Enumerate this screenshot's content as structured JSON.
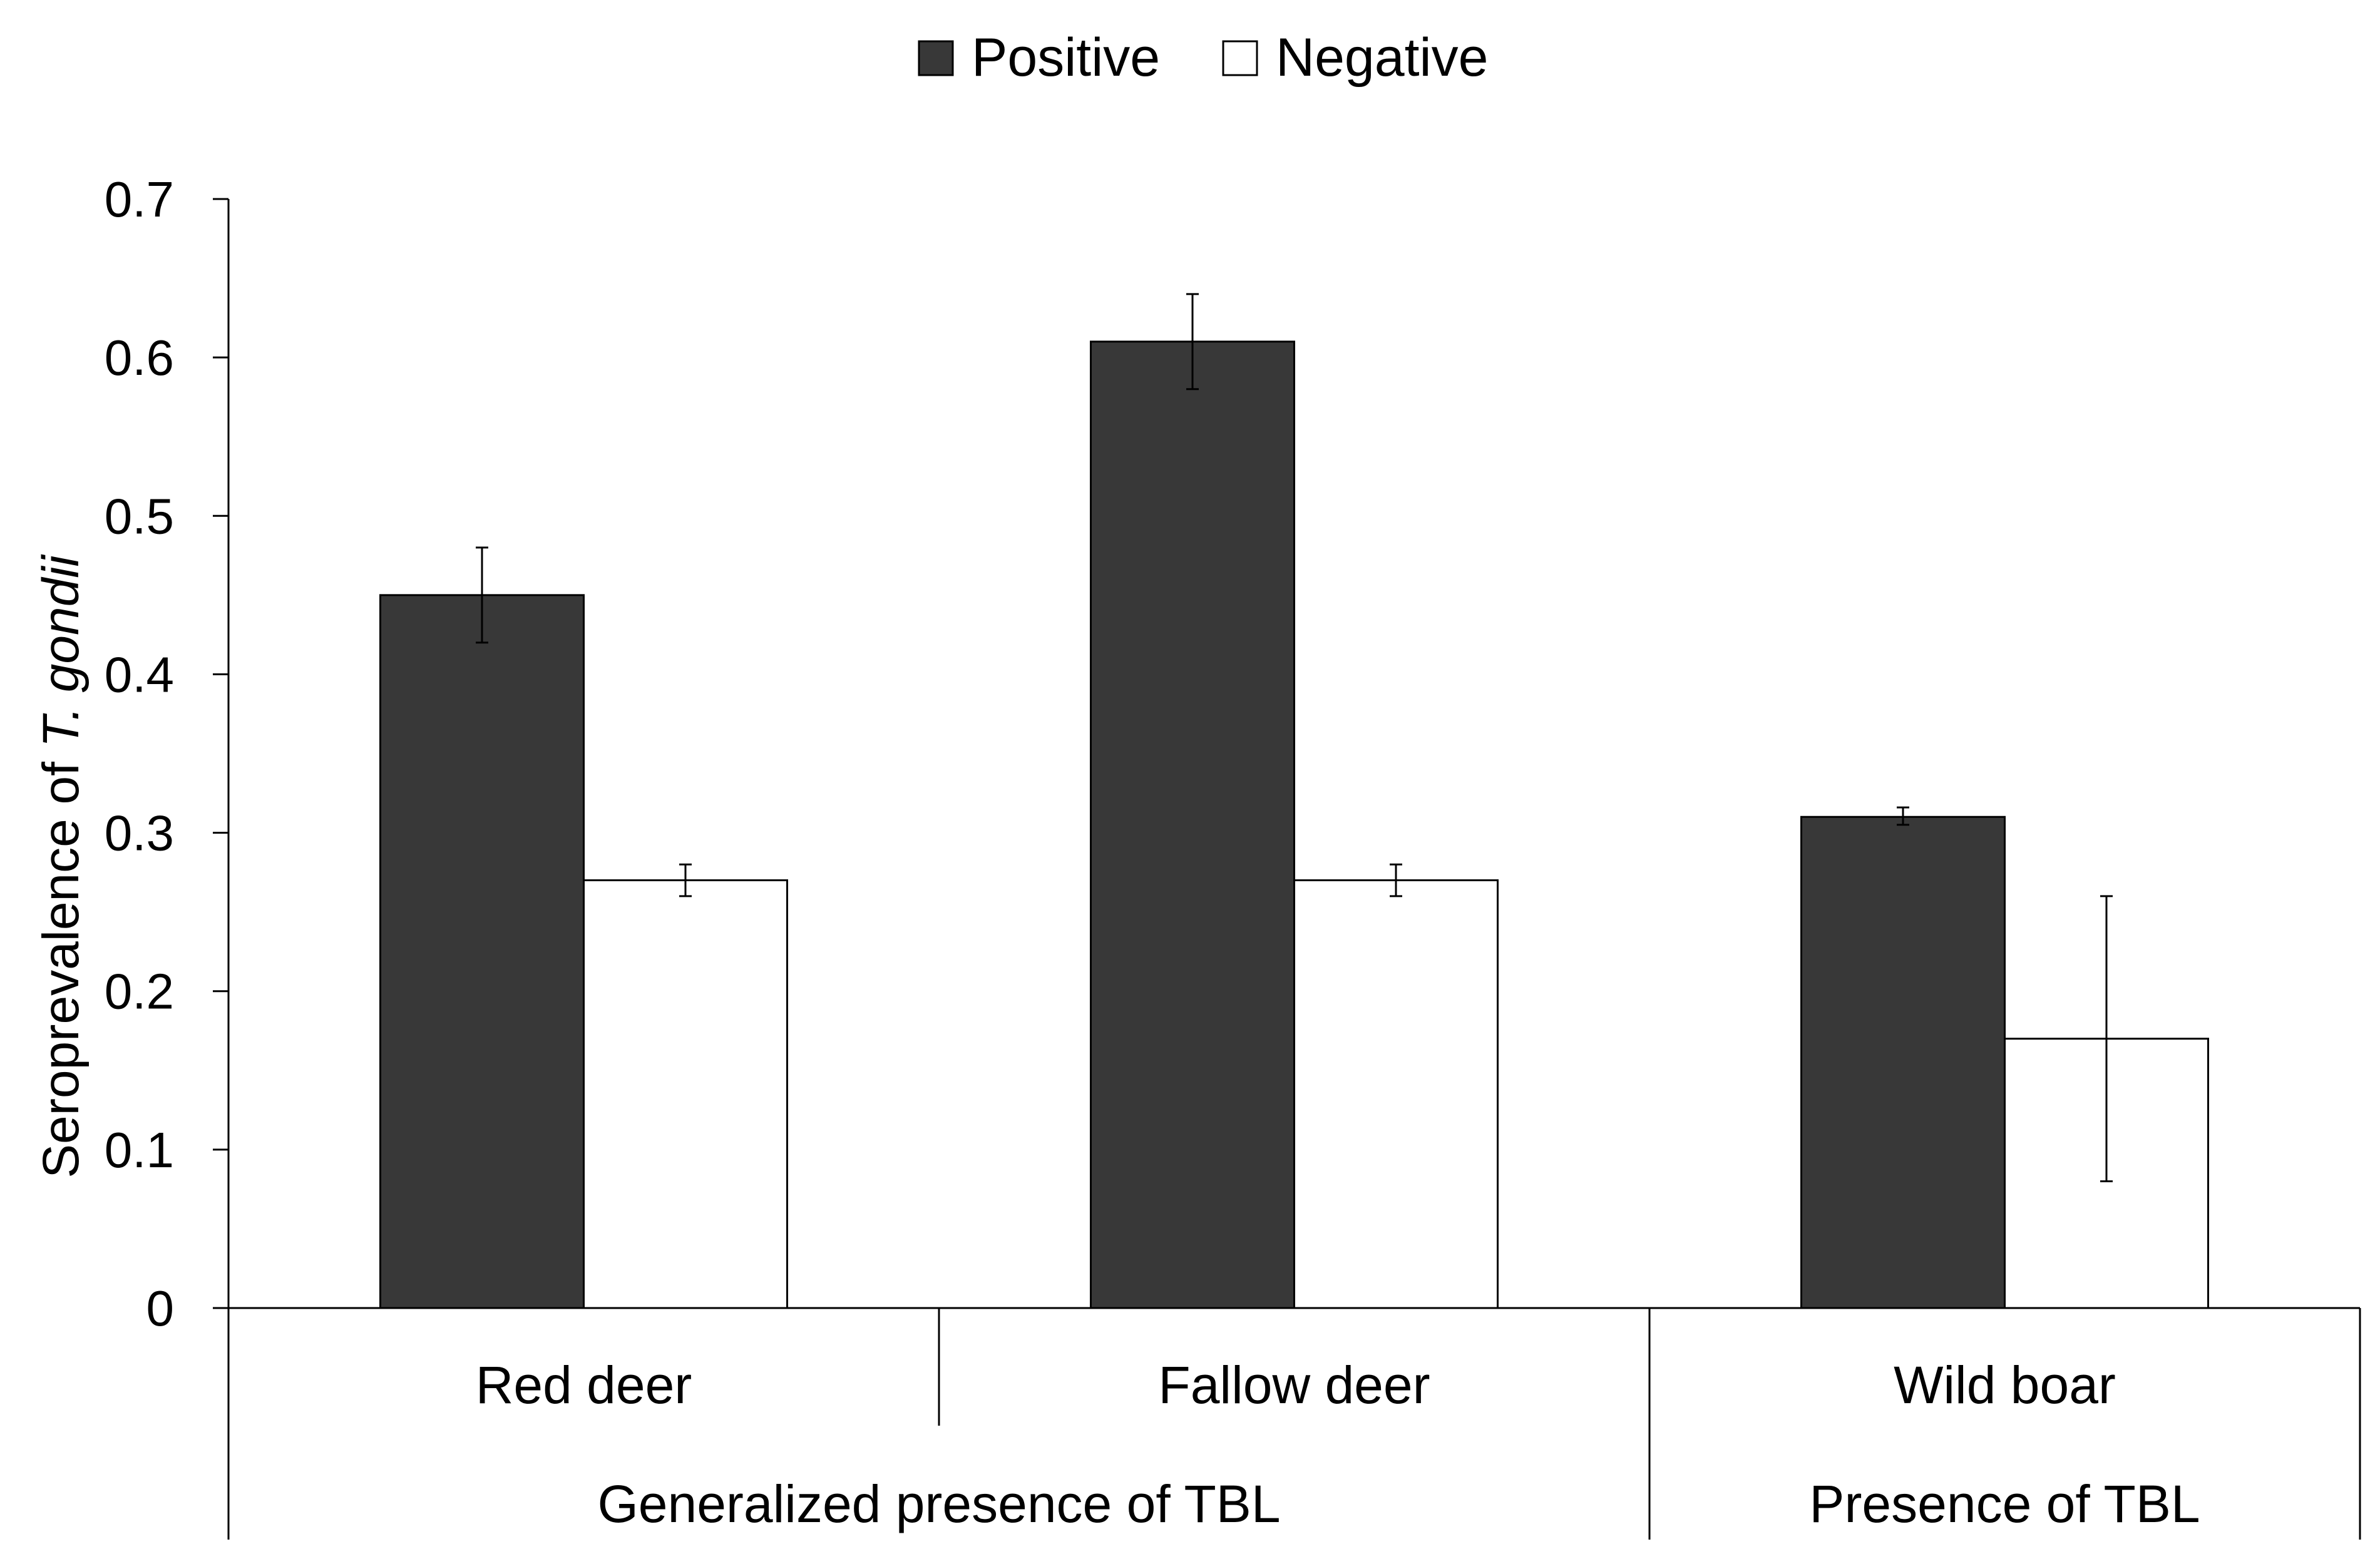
{
  "chart_data": {
    "type": "bar",
    "title": "",
    "ylabel": {
      "prefix": "Seroprevalence of ",
      "italic": "T. gondii"
    },
    "xlabel": "",
    "ylim": [
      0,
      0.7
    ],
    "yticks": [
      0,
      0.1,
      0.2,
      0.3,
      0.4,
      0.5,
      0.6,
      0.7
    ],
    "grid": false,
    "legend_position": "top-center",
    "categories": [
      "Red deer",
      "Fallow deer",
      "Wild boar"
    ],
    "groups": [
      {
        "label": "Generalized presence of TBL",
        "categories": [
          "Red deer",
          "Fallow deer"
        ]
      },
      {
        "label": "Presence of TBL",
        "categories": [
          "Wild boar"
        ]
      }
    ],
    "series": [
      {
        "name": "Positive",
        "color": "#383838",
        "values": [
          0.45,
          0.61,
          0.31
        ],
        "error_low": [
          0.42,
          0.58,
          0.305
        ],
        "error_high": [
          0.48,
          0.64,
          0.316
        ]
      },
      {
        "name": "Negative",
        "color": "#ffffff",
        "values": [
          0.27,
          0.27,
          0.17
        ],
        "error_low": [
          0.26,
          0.26,
          0.08
        ],
        "error_high": [
          0.28,
          0.28,
          0.26
        ]
      }
    ]
  }
}
